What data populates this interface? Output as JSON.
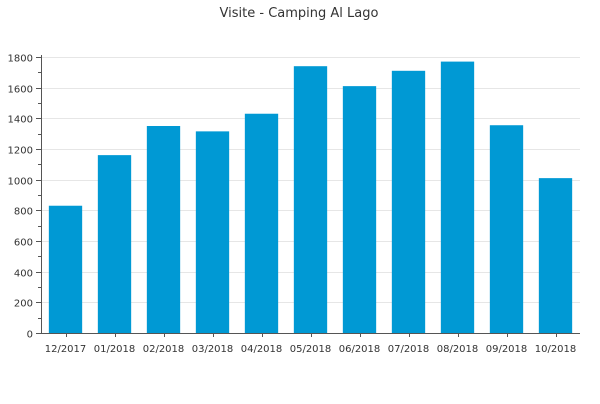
{
  "chart_data": {
    "type": "bar",
    "title": "Visite - Camping Al Lago",
    "xlabel": "",
    "ylabel": "",
    "categories": [
      "12/2017",
      "01/2018",
      "02/2018",
      "03/2018",
      "04/2018",
      "05/2018",
      "06/2018",
      "07/2018",
      "08/2018",
      "09/2018",
      "10/2018"
    ],
    "values": [
      830,
      1160,
      1350,
      1315,
      1430,
      1740,
      1610,
      1710,
      1770,
      1355,
      1010
    ],
    "ylim": [
      0,
      1800
    ],
    "yticks": [
      0,
      200,
      400,
      600,
      800,
      1000,
      1200,
      1400,
      1600,
      1800
    ],
    "grid": true,
    "bar_color": "#0099d4"
  }
}
